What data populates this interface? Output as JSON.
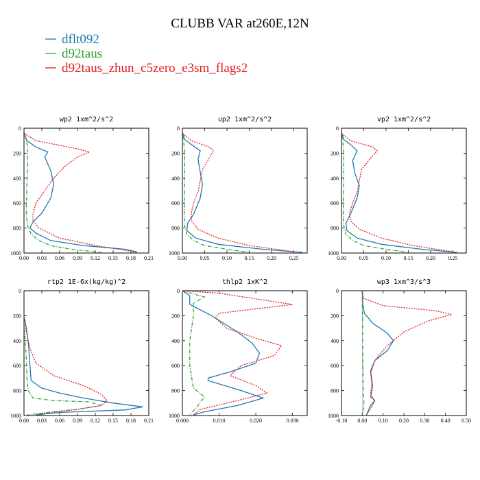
{
  "chart_data": {
    "type": "line",
    "title": "CLUBB VAR at260E,12N",
    "series_meta": [
      {
        "name": "dflt092",
        "color": "#1f77b4",
        "dash": "solid"
      },
      {
        "name": "d92taus",
        "color": "#2ca02c",
        "dash": "dashdot"
      },
      {
        "name": "d92taus_zhun_c5zero_e3sm_flags2",
        "color": "#e41a1c",
        "dash": "dotted"
      }
    ],
    "panels": [
      {
        "title": "wp2   1xm^2/s^2",
        "xlim": [
          0,
          0.21
        ],
        "ylim": [
          1000,
          0
        ],
        "xticks": [
          "0.00",
          "0.03",
          "0.06",
          "0.09",
          "0.12",
          "0.15",
          "0.18",
          "0.21"
        ],
        "yticks": [
          "0",
          "200",
          "400",
          "600",
          "800",
          "1000"
        ],
        "series": [
          {
            "x": [
              0.0,
              0.005,
              0.02,
              0.04,
              0.035,
              0.045,
              0.05,
              0.045,
              0.03,
              0.015,
              0.01,
              0.02,
              0.045,
              0.1,
              0.17,
              0.19
            ],
            "y": [
              30,
              100,
              150,
              190,
              230,
              340,
              450,
              560,
              680,
              750,
              800,
              840,
              900,
              940,
              970,
              990
            ]
          },
          {
            "x": [
              0.002,
              0.006,
              0.006,
              0.005,
              0.004,
              0.004,
              0.006,
              0.012,
              0.025,
              0.045,
              0.08,
              0.13
            ],
            "y": [
              60,
              150,
              300,
              450,
              600,
              700,
              780,
              850,
              900,
              940,
              970,
              995
            ]
          },
          {
            "x": [
              0.0,
              0.02,
              0.085,
              0.11,
              0.09,
              0.07,
              0.05,
              0.035,
              0.02,
              0.015,
              0.015,
              0.025,
              0.06,
              0.12,
              0.16,
              0.19
            ],
            "y": [
              40,
              100,
              160,
              190,
              230,
              300,
              400,
              500,
              600,
              690,
              740,
              800,
              880,
              940,
              970,
              995
            ]
          }
        ]
      },
      {
        "title": "up2   1xm^2/s^2",
        "xlim": [
          0,
          0.28
        ],
        "ylim": [
          1000,
          0
        ],
        "xticks": [
          "0.00",
          "0.05",
          "0.10",
          "0.15",
          "0.20",
          "0.25"
        ],
        "yticks": [
          "0",
          "200",
          "400",
          "600",
          "800",
          "1000"
        ],
        "series": [
          {
            "x": [
              0.0,
              0.005,
              0.02,
              0.04,
              0.035,
              0.04,
              0.045,
              0.04,
              0.025,
              0.012,
              0.01,
              0.03,
              0.08,
              0.18,
              0.27
            ],
            "y": [
              30,
              90,
              130,
              180,
              250,
              350,
              450,
              560,
              690,
              760,
              820,
              880,
              930,
              970,
              995
            ]
          },
          {
            "x": [
              0.002,
              0.005,
              0.005,
              0.004,
              0.004,
              0.005,
              0.01,
              0.025,
              0.05,
              0.1,
              0.15
            ],
            "y": [
              60,
              200,
              400,
              600,
              700,
              780,
              850,
              900,
              940,
              970,
              995
            ]
          },
          {
            "x": [
              0.0,
              0.02,
              0.06,
              0.07,
              0.06,
              0.045,
              0.04,
              0.035,
              0.025,
              0.02,
              0.02,
              0.035,
              0.08,
              0.15,
              0.25
            ],
            "y": [
              40,
              100,
              150,
              180,
              240,
              330,
              420,
              510,
              600,
              680,
              740,
              810,
              880,
              940,
              990
            ]
          }
        ]
      },
      {
        "title": "vp2   1xm^2/s^2",
        "xlim": [
          0,
          0.28
        ],
        "ylim": [
          1000,
          0
        ],
        "xticks": [
          "0.00",
          "0.05",
          "0.10",
          "0.15",
          "0.20",
          "0.25"
        ],
        "yticks": [
          "0",
          "200",
          "400",
          "600",
          "800",
          "1000"
        ],
        "series": [
          {
            "x": [
              0.0,
              0.005,
              0.02,
              0.035,
              0.025,
              0.03,
              0.04,
              0.035,
              0.02,
              0.01,
              0.012,
              0.035,
              0.09,
              0.18,
              0.26
            ],
            "y": [
              30,
              90,
              130,
              180,
              260,
              360,
              460,
              560,
              690,
              760,
              820,
              880,
              930,
              970,
              995
            ]
          },
          {
            "x": [
              0.002,
              0.005,
              0.005,
              0.004,
              0.004,
              0.005,
              0.01,
              0.025,
              0.05,
              0.1,
              0.15
            ],
            "y": [
              60,
              200,
              400,
              600,
              700,
              780,
              850,
              900,
              940,
              970,
              995
            ]
          },
          {
            "x": [
              0.0,
              0.02,
              0.07,
              0.08,
              0.065,
              0.045,
              0.04,
              0.035,
              0.025,
              0.018,
              0.02,
              0.04,
              0.09,
              0.16,
              0.25
            ],
            "y": [
              40,
              100,
              150,
              180,
              240,
              330,
              420,
              510,
              600,
              680,
              740,
              810,
              880,
              940,
              990
            ]
          }
        ]
      },
      {
        "title": "rtp2   1E-6x(kg/kg)^2",
        "xlim": [
          0,
          0.21
        ],
        "ylim": [
          1000,
          0
        ],
        "xticks": [
          "0.00",
          "0.03",
          "0.06",
          "0.09",
          "0.12",
          "0.15",
          "0.18",
          "0.21"
        ],
        "yticks": [
          "0",
          "200",
          "400",
          "600",
          "800",
          "1000"
        ],
        "series": [
          {
            "x": [
              0.0,
              0.004,
              0.008,
              0.01,
              0.012,
              0.03,
              0.06,
              0.1,
              0.15,
              0.2,
              0.17,
              0.06,
              0.02
            ],
            "y": [
              200,
              300,
              450,
              600,
              720,
              780,
              820,
              860,
              900,
              930,
              955,
              975,
              995
            ]
          },
          {
            "x": [
              0.0,
              0.002,
              0.004,
              0.005,
              0.007,
              0.015,
              0.05,
              0.11,
              0.13,
              0.09,
              0.04,
              0.005
            ],
            "y": [
              250,
              400,
              550,
              700,
              800,
              860,
              880,
              890,
              920,
              950,
              975,
              995
            ]
          },
          {
            "x": [
              0.0,
              0.004,
              0.01,
              0.02,
              0.05,
              0.1,
              0.13,
              0.14,
              0.13,
              0.09,
              0.02
            ],
            "y": [
              220,
              330,
              460,
              580,
              680,
              760,
              830,
              880,
              920,
              950,
              990
            ]
          }
        ]
      },
      {
        "title": "thlp2   1xK^2",
        "xlim": [
          0,
          0.034
        ],
        "ylim": [
          1000,
          0
        ],
        "xticks": [
          "0.000",
          "0.010",
          "0.020",
          "0.030"
        ],
        "yticks": [
          "0",
          "200",
          "400",
          "600",
          "800",
          "1000"
        ],
        "series": [
          {
            "x": [
              0.0,
              0.002,
              0.002,
              0.008,
              0.015,
              0.019,
              0.021,
              0.02,
              0.013,
              0.007,
              0.007,
              0.016,
              0.022,
              0.015,
              0.006,
              0.003
            ],
            "y": [
              0,
              40,
              110,
              200,
              330,
              420,
              500,
              580,
              650,
              700,
              720,
              800,
              860,
              920,
              970,
              995
            ]
          },
          {
            "x": [
              0.0,
              0.006,
              0.003,
              0.003,
              0.002,
              0.002,
              0.003,
              0.006,
              0.004,
              0.002
            ],
            "y": [
              0,
              50,
              100,
              200,
              400,
              600,
              780,
              850,
              930,
              995
            ]
          },
          {
            "x": [
              0.0,
              0.01,
              0.03,
              0.01,
              0.009,
              0.012,
              0.02,
              0.027,
              0.025,
              0.016,
              0.013,
              0.02,
              0.023,
              0.015,
              0.005,
              0.003
            ],
            "y": [
              0,
              20,
              110,
              180,
              220,
              300,
              380,
              440,
              520,
              600,
              680,
              760,
              820,
              880,
              950,
              995
            ]
          }
        ]
      },
      {
        "title": "wp3   1xm^3/s^3",
        "xlim": [
          -0.1,
          0.5
        ],
        "ylim": [
          1000,
          0
        ],
        "xticks": [
          "-0.10",
          "0.00",
          "0.10",
          "0.20",
          "0.30",
          "0.40",
          "0.50"
        ],
        "yticks": [
          "0",
          "200",
          "400",
          "600",
          "800",
          "1000"
        ],
        "series": [
          {
            "x": [
              0.0,
              0.002,
              0.01,
              0.05,
              0.12,
              0.15,
              0.12,
              0.06,
              0.04,
              0.045,
              0.05,
              0.04,
              0.06,
              0.04,
              0.02
            ],
            "y": [
              0,
              100,
              180,
              260,
              340,
              400,
              480,
              560,
              640,
              700,
              770,
              850,
              880,
              920,
              995
            ]
          },
          {
            "x": [
              0.0,
              0.0,
              0.002,
              0.002,
              0.003,
              0.004,
              0.005,
              0.008,
              0.006,
              0.0
            ],
            "y": [
              0,
              100,
              250,
              400,
              550,
              700,
              800,
              880,
              950,
              995
            ]
          },
          {
            "x": [
              0.0,
              0.005,
              0.1,
              0.35,
              0.43,
              0.32,
              0.2,
              0.12,
              0.06,
              0.04,
              0.045,
              0.04,
              0.06,
              0.045,
              0.02
            ],
            "y": [
              0,
              60,
              120,
              160,
              190,
              240,
              330,
              440,
              560,
              660,
              740,
              830,
              880,
              930,
              995
            ]
          }
        ]
      }
    ]
  }
}
